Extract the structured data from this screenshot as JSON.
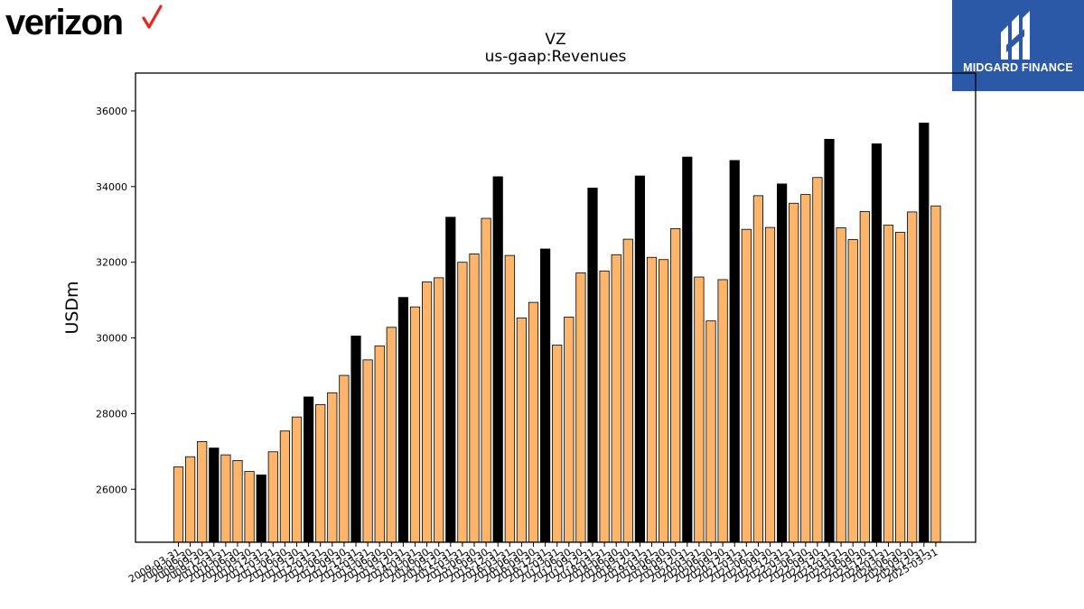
{
  "brand": {
    "logo_text": "verizon",
    "badge_text": "MIDGARD FINANCE",
    "badge_color": "#2b59a8",
    "check_color": "#e8261d"
  },
  "chart_data": {
    "type": "bar",
    "title": "VZ",
    "subtitle": "us-gaap:Revenues",
    "ylabel": "USDm",
    "xlabel": "",
    "ylim": [
      24600,
      37000
    ],
    "yticks": [
      26000,
      28000,
      30000,
      32000,
      34000,
      36000
    ],
    "grid": false,
    "legend": "none",
    "colors": {
      "quarterly": "#fdb56b",
      "fiscal_year": "#000000"
    },
    "categories": [
      "2009-03-31",
      "2009-06-30",
      "2009-09-30",
      "2009-12-31",
      "2010-03-31",
      "2010-06-30",
      "2010-09-30",
      "2010-12-31",
      "2011-03-31",
      "2011-06-30",
      "2011-09-30",
      "2011-12-31",
      "2012-03-31",
      "2012-06-30",
      "2012-09-30",
      "2012-12-31",
      "2013-03-31",
      "2013-06-30",
      "2013-09-30",
      "2013-12-31",
      "2014-03-31",
      "2014-06-30",
      "2014-09-30",
      "2014-12-31",
      "2015-03-31",
      "2015-06-30",
      "2015-09-30",
      "2015-12-31",
      "2016-03-31",
      "2016-06-30",
      "2016-09-30",
      "2016-12-31",
      "2017-03-31",
      "2017-06-30",
      "2017-09-30",
      "2017-12-31",
      "2018-03-31",
      "2018-06-30",
      "2018-09-30",
      "2018-12-31",
      "2019-03-31",
      "2019-06-30",
      "2019-09-30",
      "2019-12-31",
      "2020-03-31",
      "2020-06-30",
      "2020-09-30",
      "2020-12-31",
      "2021-03-31",
      "2021-06-30",
      "2021-09-30",
      "2021-12-31",
      "2022-03-31",
      "2022-06-30",
      "2022-09-30",
      "2022-12-31",
      "2023-03-31",
      "2023-06-30",
      "2023-09-30",
      "2023-12-31",
      "2024-03-31",
      "2024-06-30",
      "2024-09-30",
      "2024-12-31",
      "2025-03-31"
    ],
    "values": [
      26590,
      26860,
      27260,
      27090,
      26910,
      26760,
      26470,
      26380,
      26990,
      27540,
      27910,
      28440,
      28240,
      28550,
      29010,
      30050,
      29420,
      29790,
      30280,
      31070,
      30820,
      31480,
      31590,
      33190,
      32000,
      32220,
      33160,
      34260,
      32180,
      30530,
      30940,
      32350,
      29810,
      30550,
      31720,
      33960,
      31770,
      32200,
      32610,
      34280,
      32130,
      32070,
      32890,
      34780,
      31610,
      30450,
      31540,
      34690,
      32870,
      33760,
      32920,
      34070,
      33560,
      33790,
      34240,
      35250,
      32910,
      32600,
      33340,
      35130,
      32980,
      32790,
      33330,
      35680,
      33490
    ],
    "is_fiscal_year": [
      false,
      false,
      false,
      true,
      false,
      false,
      false,
      true,
      false,
      false,
      false,
      true,
      false,
      false,
      false,
      true,
      false,
      false,
      false,
      true,
      false,
      false,
      false,
      true,
      false,
      false,
      false,
      true,
      false,
      false,
      false,
      true,
      false,
      false,
      false,
      true,
      false,
      false,
      false,
      true,
      false,
      false,
      false,
      true,
      false,
      false,
      false,
      true,
      false,
      false,
      false,
      true,
      false,
      false,
      false,
      true,
      false,
      false,
      false,
      true,
      false,
      false,
      false,
      true,
      false
    ]
  }
}
